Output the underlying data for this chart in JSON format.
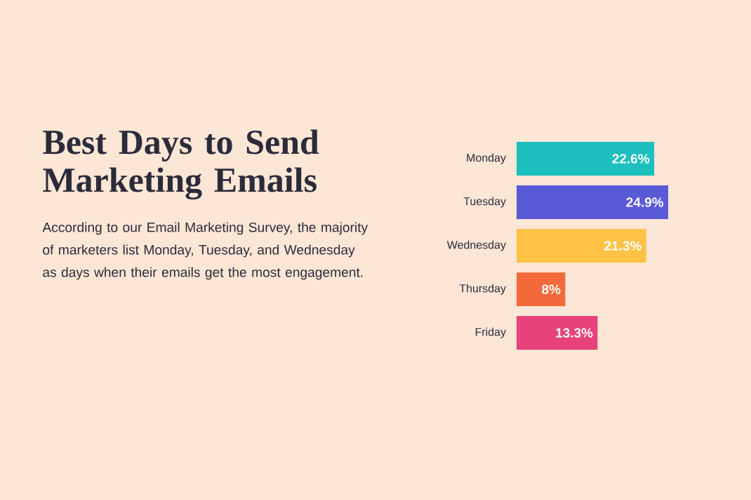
{
  "chart_data": {
    "type": "bar",
    "orientation": "horizontal",
    "title": "Best Days to Send Marketing Emails",
    "subtitle": "According to our Email Marketing Survey, the majority of marketers list Monday, Tuesday, and Wednesday as days when their emails get the most engagement.",
    "categories": [
      "Monday",
      "Tuesday",
      "Wednesday",
      "Thursday",
      "Friday"
    ],
    "values": [
      22.6,
      24.9,
      21.3,
      8,
      13.3
    ],
    "value_labels": [
      "22.6%",
      "24.9%",
      "21.3%",
      "8%",
      "13.3%"
    ],
    "colors": [
      "#1dbfbf",
      "#5a5ad6",
      "#ffc247",
      "#f26a3c",
      "#e8427a"
    ]
  }
}
